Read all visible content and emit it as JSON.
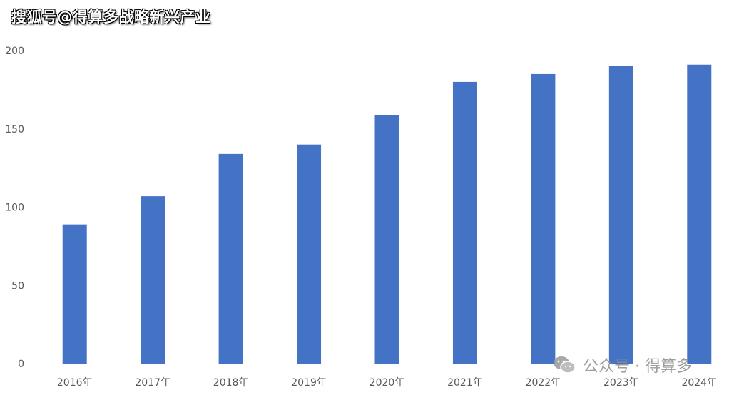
{
  "watermark_top": "搜狐号@得算多战略新兴产业",
  "watermark_bottom": "公众号 · 得算多",
  "colors": {
    "bar": "#4472C4",
    "axis": "#D9D9D9",
    "text": "#595959"
  },
  "chart_data": {
    "type": "bar",
    "title": "",
    "xlabel": "",
    "ylabel": "",
    "categories": [
      "2016年",
      "2017年",
      "2018年",
      "2019年",
      "2020年",
      "2021年",
      "2022年",
      "2023年",
      "2024年"
    ],
    "values": [
      89,
      107,
      134,
      140,
      159,
      180,
      185,
      190,
      191
    ],
    "ylim": [
      0,
      200
    ],
    "yticks": [
      0,
      50,
      100,
      150,
      200
    ],
    "grid": false,
    "legend": "none"
  }
}
